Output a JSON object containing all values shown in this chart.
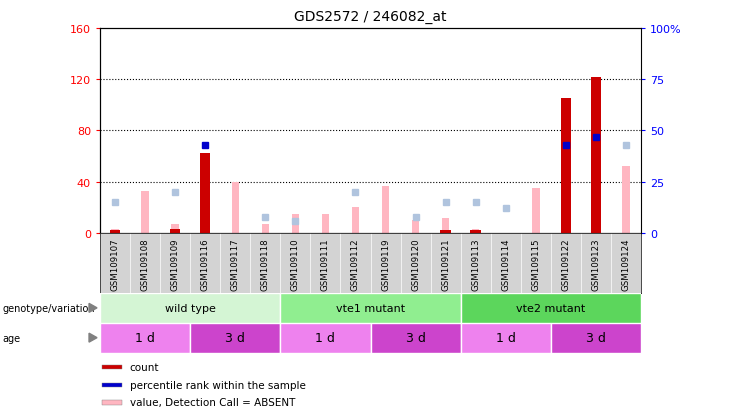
{
  "title": "GDS2572 / 246082_at",
  "samples": [
    "GSM109107",
    "GSM109108",
    "GSM109109",
    "GSM109116",
    "GSM109117",
    "GSM109118",
    "GSM109110",
    "GSM109111",
    "GSM109112",
    "GSM109119",
    "GSM109120",
    "GSM109121",
    "GSM109113",
    "GSM109114",
    "GSM109115",
    "GSM109122",
    "GSM109123",
    "GSM109124"
  ],
  "count_values": [
    2,
    0,
    3,
    62,
    0,
    0,
    0,
    0,
    0,
    0,
    0,
    2,
    2,
    0,
    0,
    105,
    122,
    0
  ],
  "percentile_rank": [
    null,
    null,
    null,
    43,
    null,
    null,
    null,
    null,
    null,
    null,
    null,
    null,
    null,
    null,
    null,
    43,
    47,
    null
  ],
  "absent_value": [
    3,
    33,
    7,
    null,
    40,
    7,
    15,
    15,
    20,
    37,
    10,
    12,
    3,
    0,
    35,
    null,
    null,
    52
  ],
  "absent_rank": [
    15,
    null,
    20,
    null,
    null,
    8,
    6,
    null,
    20,
    null,
    8,
    15,
    15,
    12,
    null,
    40,
    null,
    43
  ],
  "ylim_left": [
    0,
    160
  ],
  "ylim_right": [
    0,
    100
  ],
  "yticks_left": [
    0,
    40,
    80,
    120,
    160
  ],
  "yticks_right": [
    0,
    25,
    50,
    75,
    100
  ],
  "ytick_labels_right": [
    "0",
    "25",
    "50",
    "75",
    "100%"
  ],
  "genotype_groups": [
    {
      "label": "wild type",
      "start": 0,
      "end": 6,
      "color": "#d4f5d4"
    },
    {
      "label": "vte1 mutant",
      "start": 6,
      "end": 12,
      "color": "#90ee90"
    },
    {
      "label": "vte2 mutant",
      "start": 12,
      "end": 18,
      "color": "#5cd65c"
    }
  ],
  "age_groups": [
    {
      "label": "1 d",
      "start": 0,
      "end": 3,
      "color": "#ee82ee"
    },
    {
      "label": "3 d",
      "start": 3,
      "end": 6,
      "color": "#cc44cc"
    },
    {
      "label": "1 d",
      "start": 6,
      "end": 9,
      "color": "#ee82ee"
    },
    {
      "label": "3 d",
      "start": 9,
      "end": 12,
      "color": "#cc44cc"
    },
    {
      "label": "1 d",
      "start": 12,
      "end": 15,
      "color": "#ee82ee"
    },
    {
      "label": "3 d",
      "start": 15,
      "end": 18,
      "color": "#cc44cc"
    }
  ],
  "count_color": "#cc0000",
  "percentile_color": "#0000cc",
  "absent_value_color": "#ffb6c1",
  "absent_rank_color": "#b0c4de",
  "bg_color": "#d3d3d3",
  "legend_items": [
    {
      "color": "#cc0000",
      "label": "count"
    },
    {
      "color": "#0000cc",
      "label": "percentile rank within the sample"
    },
    {
      "color": "#ffb6c1",
      "label": "value, Detection Call = ABSENT"
    },
    {
      "color": "#b0c4de",
      "label": "rank, Detection Call = ABSENT"
    }
  ]
}
